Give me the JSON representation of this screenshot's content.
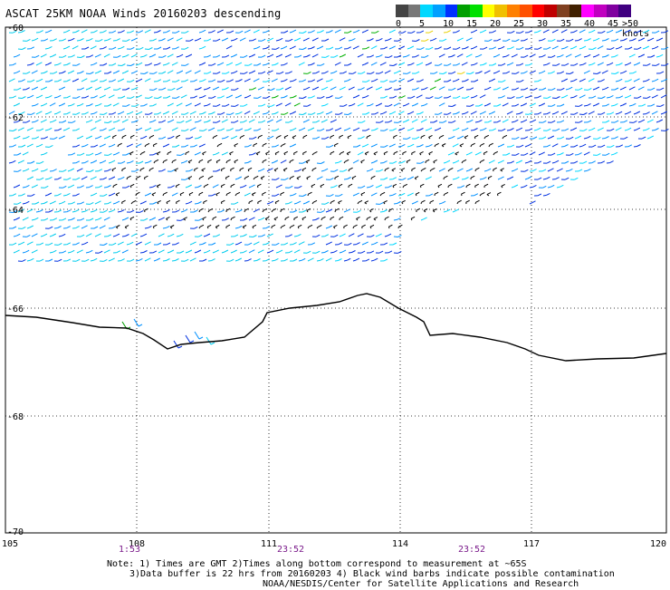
{
  "title": "ASCAT 25KM NOAA Winds 20160203 descending",
  "legend": {
    "units": ">50 knots",
    "labels": [
      "0",
      "5",
      "10",
      "15",
      "20",
      "25",
      "30",
      "35",
      "40",
      "45"
    ],
    "colors": [
      "#444444",
      "#777777",
      "#00d8ff",
      "#00a0ff",
      "#0030ff",
      "#00a000",
      "#00e000",
      "#ffff00",
      "#f0c000",
      "#ff8000",
      "#ff5000",
      "#ff0000",
      "#c00000",
      "#804020",
      "#402000",
      "#ff00ff",
      "#c000c0",
      "#8000a0",
      "#400080"
    ]
  },
  "axes": {
    "lat_labels": [
      "-60",
      "-62",
      "-64",
      "-66",
      "-68",
      "-70"
    ],
    "lon_labels": [
      "105",
      "108",
      "111",
      "114",
      "117",
      "120"
    ]
  },
  "time_labels": [
    "1:53",
    "23:52",
    "23:52"
  ],
  "notes": {
    "line1": "Note: 1) Times are GMT 2)Times along bottom correspond to measurement at ~65S",
    "line2": "3)Data buffer is 22 hrs from 20160203 4) Black wind barbs indicate possible contamination",
    "line3": "NOAA/NESDIS/Center for Satellite Applications and Research"
  }
}
